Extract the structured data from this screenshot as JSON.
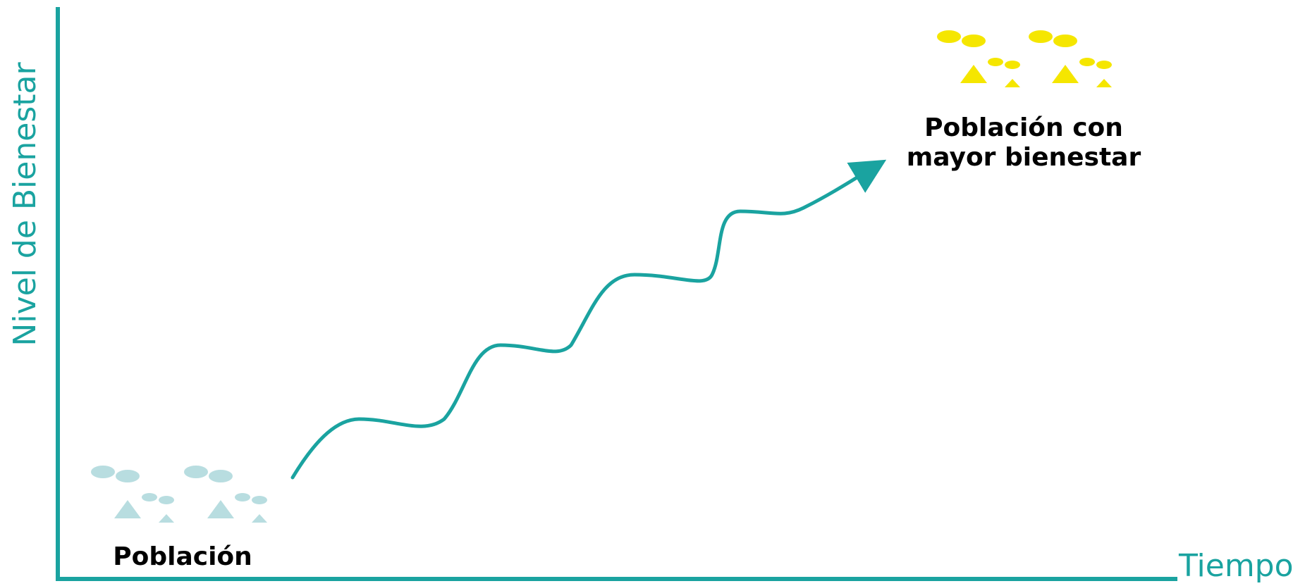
{
  "axes": {
    "y_label": "Nivel de Bienestar",
    "x_label": "Tiempo",
    "color": "#1aa3a0"
  },
  "groups": {
    "start": {
      "label": "Población",
      "color": "#b8dde0"
    },
    "end": {
      "label_line1": "Población con",
      "label_line2": "mayor bienestar",
      "color": "#f5e600"
    }
  },
  "curve": {
    "color": "#1aa3a0",
    "shape": "stepped wavy rise"
  },
  "icons": [
    "family-icon",
    "arrow-icon"
  ]
}
